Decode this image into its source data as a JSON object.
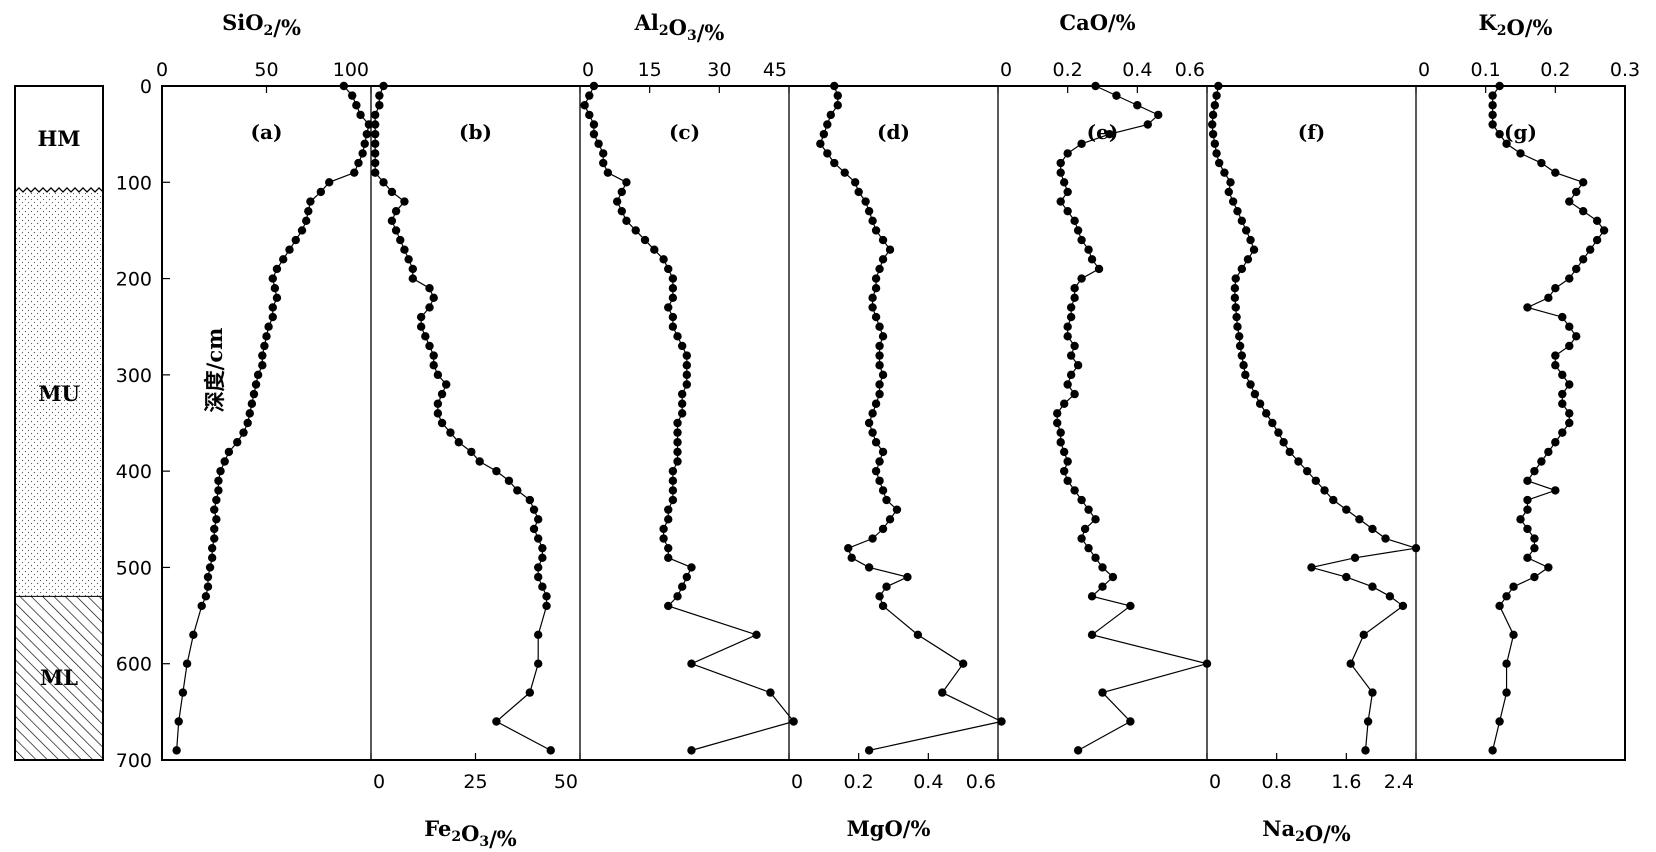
{
  "chart_data": {
    "type": "line",
    "y_axis": {
      "label": "深度/cm",
      "range": [
        0,
        700
      ],
      "ticks": [
        "0",
        "100",
        "200",
        "300",
        "400",
        "500",
        "600",
        "700"
      ]
    },
    "depth": [
      0,
      10,
      20,
      30,
      40,
      50,
      60,
      70,
      80,
      90,
      100,
      110,
      120,
      130,
      140,
      150,
      160,
      170,
      180,
      190,
      200,
      210,
      220,
      230,
      240,
      250,
      260,
      270,
      280,
      290,
      300,
      310,
      320,
      330,
      340,
      350,
      360,
      370,
      380,
      390,
      400,
      410,
      420,
      430,
      440,
      450,
      460,
      470,
      480,
      490,
      500,
      510,
      520,
      530,
      540,
      570,
      600,
      630,
      660,
      690
    ],
    "lithology": [
      {
        "label": "HM",
        "top": 0,
        "bottom": 110,
        "pattern": "blank"
      },
      {
        "label": "MU",
        "top": 110,
        "bottom": 530,
        "pattern": "dots"
      },
      {
        "label": "ML",
        "top": 530,
        "bottom": 700,
        "pattern": "hatch"
      }
    ],
    "panels": [
      {
        "tag": "(a)",
        "series": "SiO2",
        "axis_position": "top",
        "unit": "/%",
        "xrange": [
          0,
          100
        ],
        "ticks": [
          "0",
          "50",
          "100"
        ],
        "values": [
          87,
          91,
          93,
          95,
          99,
          98,
          97,
          96,
          94,
          92,
          80,
          76,
          71,
          70,
          69,
          67,
          64,
          61,
          58,
          55,
          53,
          54,
          55,
          53,
          53,
          51,
          50,
          49,
          48,
          48,
          46,
          45,
          44,
          43,
          42,
          41,
          39,
          36,
          32,
          30,
          28,
          27,
          27,
          26,
          25,
          26,
          25,
          25,
          24,
          24,
          23,
          22,
          22,
          21,
          19,
          15,
          12,
          10,
          8,
          7
        ]
      },
      {
        "tag": "(b)",
        "series": "Fe2O3",
        "axis_position": "bottom",
        "unit": "/%",
        "xrange": [
          0,
          50
        ],
        "ticks": [
          "0",
          "25",
          "50"
        ],
        "values": [
          3,
          2,
          2,
          1,
          1,
          1,
          1,
          1,
          1,
          1,
          3,
          5,
          8,
          6,
          5,
          6,
          7,
          8,
          9,
          10,
          10,
          14,
          15,
          14,
          12,
          12,
          13,
          14,
          15,
          15,
          16,
          18,
          17,
          16,
          16,
          17,
          19,
          21,
          24,
          26,
          30,
          33,
          35,
          38,
          39,
          40,
          39,
          40,
          41,
          41,
          40,
          40,
          41,
          42,
          42,
          40,
          40,
          38,
          30,
          43
        ]
      },
      {
        "tag": "(c)",
        "series": "Al2O3",
        "axis_position": "top",
        "unit": "/%",
        "xrange": [
          0,
          45
        ],
        "ticks": [
          "0",
          "15",
          "30",
          "45"
        ],
        "values": [
          3,
          2,
          1,
          2,
          3,
          3,
          4,
          5,
          5,
          6,
          10,
          9,
          8,
          9,
          10,
          12,
          14,
          16,
          18,
          19,
          20,
          20,
          20,
          19,
          20,
          20,
          21,
          22,
          23,
          23,
          23,
          23,
          22,
          22,
          22,
          21,
          21,
          21,
          21,
          21,
          20,
          20,
          20,
          20,
          19,
          19,
          18,
          18,
          19,
          19,
          24,
          23,
          22,
          21,
          19,
          38,
          24,
          41,
          46,
          24
        ]
      },
      {
        "tag": "(d)",
        "series": "MgO",
        "axis_position": "bottom",
        "unit": "/%",
        "xrange": [
          0,
          0.6
        ],
        "ticks": [
          "0",
          "0.2",
          "0.4",
          "0.6"
        ],
        "values": [
          0.13,
          0.14,
          0.14,
          0.12,
          0.11,
          0.1,
          0.09,
          0.11,
          0.13,
          0.16,
          0.19,
          0.2,
          0.22,
          0.23,
          0.24,
          0.25,
          0.27,
          0.29,
          0.27,
          0.26,
          0.25,
          0.25,
          0.24,
          0.24,
          0.25,
          0.26,
          0.27,
          0.26,
          0.26,
          0.26,
          0.27,
          0.26,
          0.26,
          0.25,
          0.24,
          0.23,
          0.24,
          0.25,
          0.27,
          0.26,
          0.25,
          0.26,
          0.27,
          0.28,
          0.31,
          0.29,
          0.27,
          0.24,
          0.17,
          0.18,
          0.23,
          0.34,
          0.28,
          0.26,
          0.27,
          0.37,
          0.5,
          0.44,
          0.61,
          0.23
        ]
      },
      {
        "tag": "(e)",
        "series": "CaO",
        "axis_position": "top",
        "unit": "/%",
        "xrange": [
          0,
          0.6
        ],
        "ticks": [
          "0",
          "0.2",
          "0.4",
          "0.6"
        ],
        "values": [
          0.28,
          0.34,
          0.4,
          0.46,
          0.43,
          0.32,
          0.24,
          0.2,
          0.18,
          0.18,
          0.19,
          0.2,
          0.18,
          0.2,
          0.22,
          0.23,
          0.24,
          0.26,
          0.27,
          0.29,
          0.24,
          0.22,
          0.22,
          0.21,
          0.21,
          0.2,
          0.2,
          0.22,
          0.21,
          0.23,
          0.21,
          0.2,
          0.22,
          0.19,
          0.17,
          0.17,
          0.18,
          0.18,
          0.19,
          0.2,
          0.19,
          0.2,
          0.22,
          0.24,
          0.26,
          0.28,
          0.25,
          0.24,
          0.26,
          0.28,
          0.3,
          0.33,
          0.3,
          0.27,
          0.38,
          0.27,
          0.6,
          0.3,
          0.38,
          0.23
        ]
      },
      {
        "tag": "(f)",
        "series": "Na2O",
        "axis_position": "bottom",
        "unit": "/%",
        "xrange": [
          0,
          2.4
        ],
        "ticks": [
          "0",
          "0.8",
          "1.6",
          "2.4"
        ],
        "values": [
          0.13,
          0.11,
          0.09,
          0.07,
          0.06,
          0.07,
          0.09,
          0.11,
          0.14,
          0.2,
          0.27,
          0.25,
          0.3,
          0.35,
          0.4,
          0.45,
          0.5,
          0.54,
          0.47,
          0.4,
          0.33,
          0.32,
          0.32,
          0.33,
          0.34,
          0.35,
          0.37,
          0.38,
          0.4,
          0.42,
          0.44,
          0.5,
          0.55,
          0.61,
          0.68,
          0.75,
          0.82,
          0.88,
          0.95,
          1.05,
          1.15,
          1.25,
          1.35,
          1.45,
          1.6,
          1.75,
          1.9,
          2.05,
          2.4,
          1.7,
          1.2,
          1.6,
          1.9,
          2.1,
          2.25,
          1.8,
          1.65,
          1.9,
          1.85,
          1.82
        ]
      },
      {
        "tag": "(g)",
        "series": "K2O",
        "axis_position": "top",
        "unit": "/%",
        "xrange": [
          0,
          0.3
        ],
        "ticks": [
          "0",
          "0.1",
          "0.2",
          "0.3"
        ],
        "values": [
          0.12,
          0.11,
          0.11,
          0.11,
          0.11,
          0.12,
          0.13,
          0.15,
          0.18,
          0.2,
          0.24,
          0.23,
          0.22,
          0.24,
          0.26,
          0.27,
          0.26,
          0.25,
          0.24,
          0.23,
          0.22,
          0.2,
          0.19,
          0.16,
          0.21,
          0.22,
          0.23,
          0.22,
          0.2,
          0.2,
          0.21,
          0.22,
          0.21,
          0.21,
          0.22,
          0.22,
          0.21,
          0.2,
          0.19,
          0.18,
          0.17,
          0.16,
          0.2,
          0.16,
          0.16,
          0.15,
          0.16,
          0.17,
          0.17,
          0.16,
          0.19,
          0.17,
          0.14,
          0.13,
          0.12,
          0.14,
          0.13,
          0.13,
          0.12,
          0.11
        ]
      }
    ]
  }
}
